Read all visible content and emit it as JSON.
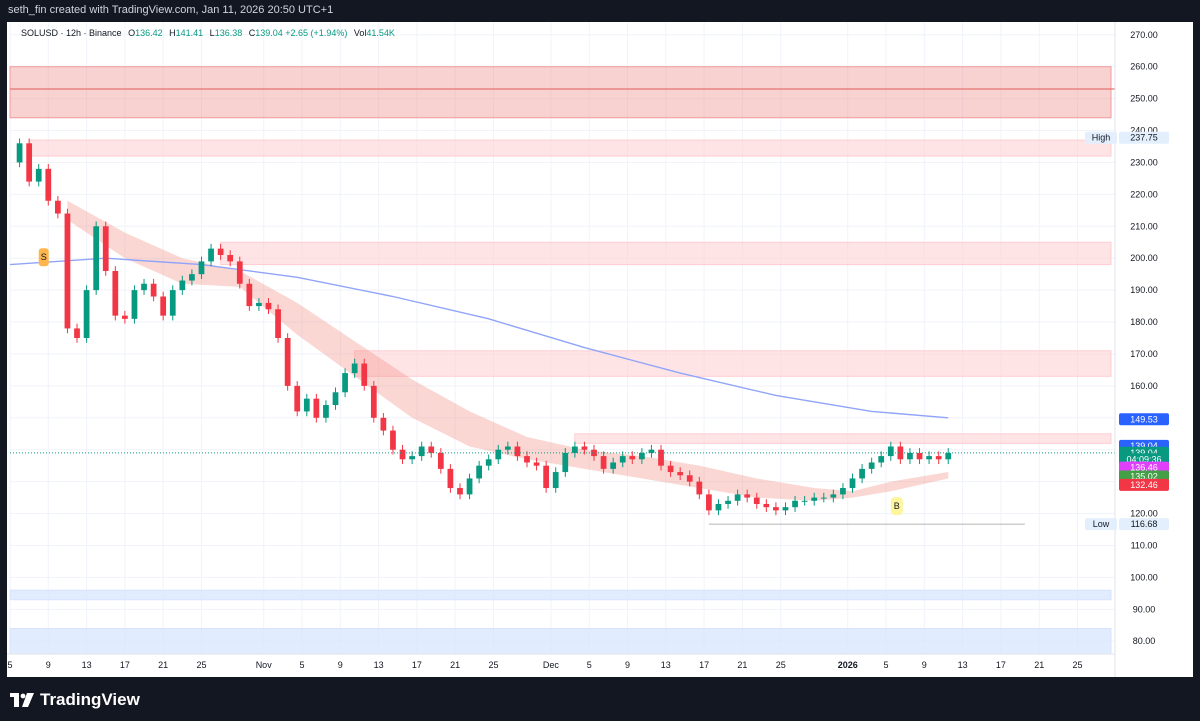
{
  "header": {
    "attribution": "seth_fin created with TradingView.com, Jan 11, 2026 20:50 UTC+1"
  },
  "footer": {
    "brand": "TradingView"
  },
  "legend": {
    "symbol": "SOLUSD · 12h · Binance",
    "open_label": "O",
    "open": "136.42",
    "high_label": "H",
    "high": "141.41",
    "low_label": "L",
    "low": "136.38",
    "close_label": "C",
    "close": "139.04",
    "change": "+2.65 (+1.94%)",
    "vol_label": "Vol",
    "vol": "41.54K"
  },
  "chart_data": {
    "type": "candlestick",
    "symbol": "SOLUSD",
    "timeframe": "12h",
    "exchange": "Binance",
    "ylim": [
      76,
      274
    ],
    "y_ticks": [
      80,
      90,
      100,
      110,
      120,
      130,
      140,
      150,
      160,
      170,
      180,
      190,
      200,
      210,
      220,
      230,
      240,
      250,
      260,
      270
    ],
    "x_ticks": [
      {
        "label": "5",
        "x": 0
      },
      {
        "label": "9",
        "x": 8
      },
      {
        "label": "13",
        "x": 16
      },
      {
        "label": "17",
        "x": 24
      },
      {
        "label": "21",
        "x": 32
      },
      {
        "label": "25",
        "x": 40
      },
      {
        "label": "Nov",
        "x": 53
      },
      {
        "label": "5",
        "x": 61
      },
      {
        "label": "9",
        "x": 69
      },
      {
        "label": "13",
        "x": 77
      },
      {
        "label": "17",
        "x": 85
      },
      {
        "label": "21",
        "x": 93
      },
      {
        "label": "25",
        "x": 101
      },
      {
        "label": "Dec",
        "x": 113
      },
      {
        "label": "5",
        "x": 121
      },
      {
        "label": "9",
        "x": 129
      },
      {
        "label": "13",
        "x": 137
      },
      {
        "label": "17",
        "x": 145
      },
      {
        "label": "21",
        "x": 153
      },
      {
        "label": "25",
        "x": 161
      },
      {
        "label": "2026",
        "x": 175
      },
      {
        "label": "5",
        "x": 183
      },
      {
        "label": "9",
        "x": 191
      },
      {
        "label": "13",
        "x": 199
      },
      {
        "label": "17",
        "x": 207
      },
      {
        "label": "21",
        "x": 215
      },
      {
        "label": "25",
        "x": 223
      }
    ],
    "x_count": 230,
    "close_series": [
      [
        0,
        230
      ],
      [
        2,
        236
      ],
      [
        4,
        224
      ],
      [
        6,
        228
      ],
      [
        8,
        218
      ],
      [
        10,
        214
      ],
      [
        12,
        178
      ],
      [
        14,
        175
      ],
      [
        16,
        190
      ],
      [
        18,
        210
      ],
      [
        20,
        196
      ],
      [
        22,
        182
      ],
      [
        24,
        181
      ],
      [
        26,
        190
      ],
      [
        28,
        192
      ],
      [
        30,
        188
      ],
      [
        32,
        182
      ],
      [
        34,
        190
      ],
      [
        36,
        193
      ],
      [
        38,
        195
      ],
      [
        40,
        199
      ],
      [
        42,
        203
      ],
      [
        44,
        201
      ],
      [
        46,
        199
      ],
      [
        48,
        192
      ],
      [
        50,
        185
      ],
      [
        52,
        186
      ],
      [
        54,
        184
      ],
      [
        56,
        175
      ],
      [
        58,
        160
      ],
      [
        60,
        152
      ],
      [
        62,
        156
      ],
      [
        64,
        150
      ],
      [
        66,
        154
      ],
      [
        68,
        158
      ],
      [
        70,
        164
      ],
      [
        72,
        167
      ],
      [
        74,
        160
      ],
      [
        76,
        150
      ],
      [
        78,
        146
      ],
      [
        80,
        140
      ],
      [
        82,
        137
      ],
      [
        84,
        138
      ],
      [
        86,
        141
      ],
      [
        88,
        139
      ],
      [
        90,
        134
      ],
      [
        92,
        128
      ],
      [
        94,
        126
      ],
      [
        96,
        131
      ],
      [
        98,
        135
      ],
      [
        100,
        137
      ],
      [
        102,
        140
      ],
      [
        104,
        141
      ],
      [
        106,
        138
      ],
      [
        108,
        136
      ],
      [
        110,
        135
      ],
      [
        112,
        128
      ],
      [
        114,
        133
      ],
      [
        116,
        139
      ],
      [
        118,
        141
      ],
      [
        120,
        140
      ],
      [
        122,
        138
      ],
      [
        124,
        134
      ],
      [
        126,
        136
      ],
      [
        128,
        138
      ],
      [
        130,
        137
      ],
      [
        132,
        139
      ],
      [
        134,
        140
      ],
      [
        136,
        135
      ],
      [
        138,
        133
      ],
      [
        140,
        132
      ],
      [
        142,
        130
      ],
      [
        144,
        126
      ],
      [
        146,
        121
      ],
      [
        148,
        123
      ],
      [
        150,
        124
      ],
      [
        152,
        126
      ],
      [
        154,
        125
      ],
      [
        156,
        123
      ],
      [
        158,
        122
      ],
      [
        160,
        121
      ],
      [
        162,
        122
      ],
      [
        164,
        124
      ],
      [
        166,
        124
      ],
      [
        168,
        125
      ],
      [
        170,
        125
      ],
      [
        172,
        126
      ],
      [
        174,
        128
      ],
      [
        176,
        131
      ],
      [
        178,
        134
      ],
      [
        180,
        136
      ],
      [
        182,
        138
      ],
      [
        184,
        141
      ],
      [
        186,
        137
      ],
      [
        188,
        139
      ],
      [
        190,
        137
      ],
      [
        192,
        138
      ],
      [
        194,
        137
      ],
      [
        196,
        139
      ]
    ],
    "ema200": [
      [
        0,
        198
      ],
      [
        20,
        200
      ],
      [
        40,
        198
      ],
      [
        60,
        194
      ],
      [
        80,
        188
      ],
      [
        100,
        181
      ],
      [
        120,
        172
      ],
      [
        140,
        164
      ],
      [
        160,
        157
      ],
      [
        180,
        152
      ],
      [
        196,
        150
      ]
    ],
    "cloud_upper": [
      [
        12,
        218
      ],
      [
        24,
        208
      ],
      [
        36,
        200
      ],
      [
        48,
        196
      ],
      [
        60,
        186
      ],
      [
        72,
        174
      ],
      [
        84,
        162
      ],
      [
        96,
        152
      ],
      [
        108,
        144
      ],
      [
        120,
        140
      ],
      [
        132,
        138
      ],
      [
        144,
        135
      ],
      [
        156,
        131
      ],
      [
        168,
        128
      ],
      [
        176,
        127
      ],
      [
        184,
        130
      ],
      [
        196,
        133
      ]
    ],
    "cloud_lower": [
      [
        12,
        212
      ],
      [
        24,
        200
      ],
      [
        36,
        192
      ],
      [
        48,
        191
      ],
      [
        60,
        176
      ],
      [
        72,
        163
      ],
      [
        84,
        150
      ],
      [
        96,
        141
      ],
      [
        108,
        137
      ],
      [
        120,
        134
      ],
      [
        132,
        131
      ],
      [
        144,
        128
      ],
      [
        156,
        125
      ],
      [
        168,
        124
      ],
      [
        176,
        125
      ],
      [
        184,
        127
      ],
      [
        196,
        131
      ]
    ],
    "zones": [
      {
        "name": "supply-zone-1",
        "x0": 0,
        "x1": 230,
        "y0": 244,
        "y1": 260,
        "color": "#ef9a9a",
        "opacity": 0.45
      },
      {
        "name": "supply-zone-2",
        "x0": 4,
        "x1": 230,
        "y0": 232,
        "y1": 237,
        "color": "#ffcdd2",
        "opacity": 0.55
      },
      {
        "name": "supply-zone-3",
        "x0": 44,
        "x1": 230,
        "y0": 198,
        "y1": 205,
        "color": "#ffcdd2",
        "opacity": 0.55
      },
      {
        "name": "supply-zone-4",
        "x0": 72,
        "x1": 230,
        "y0": 163,
        "y1": 171,
        "color": "#ffcdd2",
        "opacity": 0.55
      },
      {
        "name": "supply-zone-5",
        "x0": 118,
        "x1": 230,
        "y0": 142,
        "y1": 145,
        "color": "#ffcdd2",
        "opacity": 0.55
      },
      {
        "name": "demand-zone-1",
        "x0": 0,
        "x1": 230,
        "y0": 93,
        "y1": 96,
        "color": "#d6e4ff",
        "opacity": 0.7
      },
      {
        "name": "demand-zone-2",
        "x0": 0,
        "x1": 230,
        "y0": 76,
        "y1": 84,
        "color": "#d6e4ff",
        "opacity": 0.7
      }
    ],
    "line_250": 253,
    "labels": {
      "s_marker": "S",
      "b_marker": "B",
      "high_text": "High",
      "low_text": "Low"
    },
    "price_labels": [
      {
        "name": "high-price-label",
        "value": "237.75",
        "y": 237.75,
        "bg": "#e3effd",
        "fg": "#131722",
        "tag": "High"
      },
      {
        "name": "ema-price-label",
        "value": "149.53",
        "y": 149.53,
        "bg": "#2962ff",
        "fg": "#ffffff"
      },
      {
        "name": "cloud-price-label",
        "value": "139.04",
        "y": 141.2,
        "bg": "#2962ff",
        "fg": "#ffffff"
      },
      {
        "name": "last-price-label",
        "value": "139.04",
        "y": 139.04,
        "bg": "#089981",
        "fg": "#ffffff"
      },
      {
        "name": "countdown-label",
        "value": "04:09:36",
        "y": 137.0,
        "bg": "#089981",
        "fg": "#ffffff"
      },
      {
        "name": "ma-price-label",
        "value": "136.46",
        "y": 134.4,
        "bg": "#e040fb",
        "fg": "#ffffff"
      },
      {
        "name": "support-price-label",
        "value": "135.02",
        "y": 131.6,
        "bg": "#43a047",
        "fg": "#ffffff"
      },
      {
        "name": "ema-low-price-label",
        "value": "132.46",
        "y": 129.0,
        "bg": "#f23645",
        "fg": "#ffffff"
      },
      {
        "name": "low-price-label",
        "value": "116.68",
        "y": 116.68,
        "bg": "#e3effd",
        "fg": "#131722",
        "tag": "Low"
      }
    ],
    "colors": {
      "up": "#089981",
      "down": "#f23645",
      "ema200": "#90a4f9",
      "cloud": "#f28b82",
      "grid": "#f0f3fa"
    }
  }
}
